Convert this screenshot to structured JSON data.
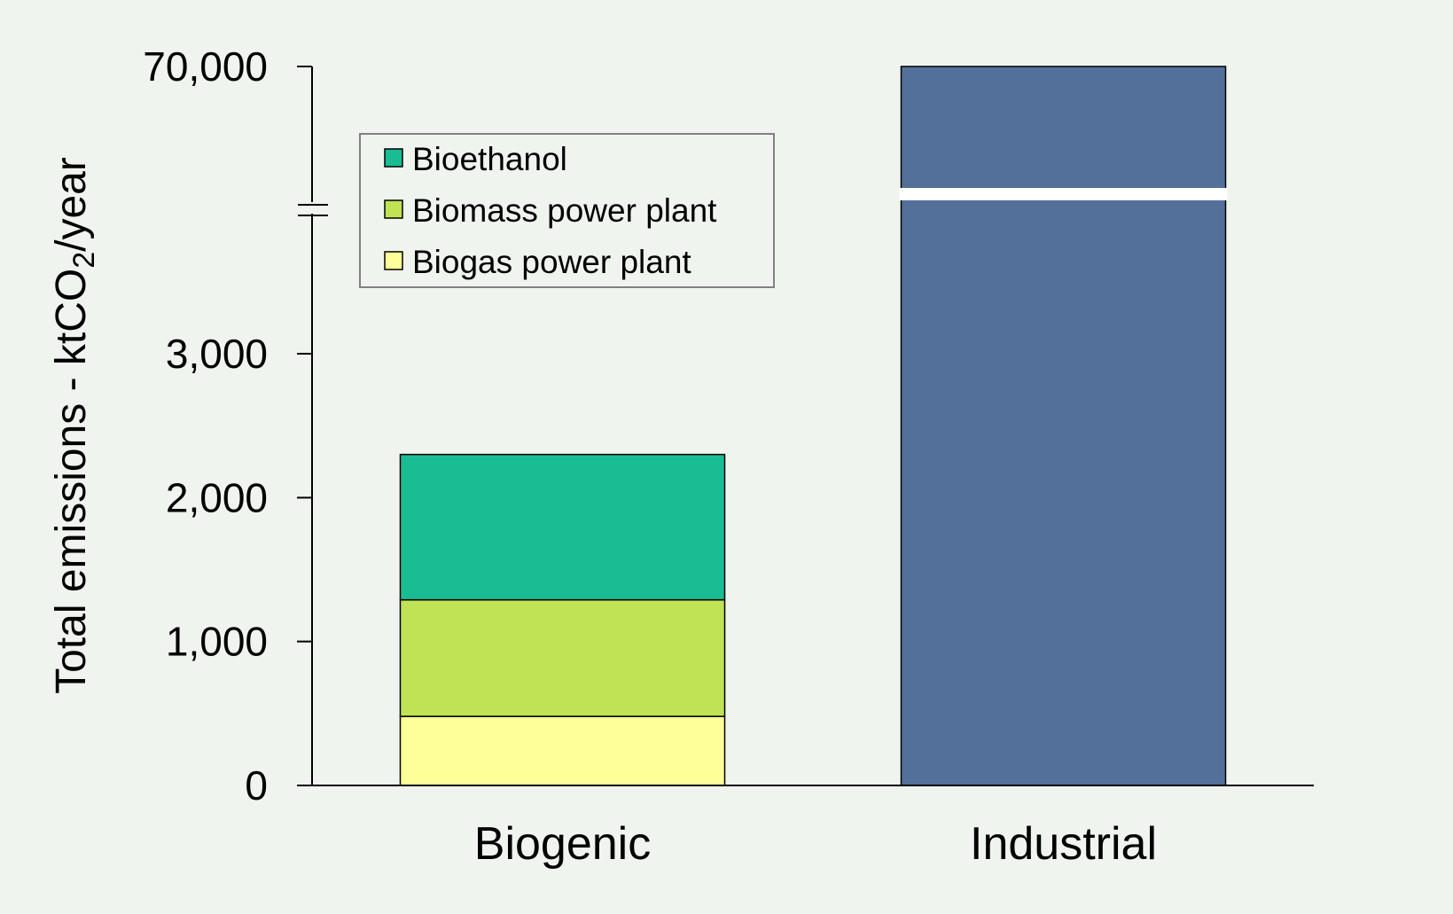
{
  "chart_data": {
    "type": "bar",
    "stacked": true,
    "broken_axis": true,
    "categories": [
      "Biogenic",
      "Industrial"
    ],
    "series": [
      {
        "name": "Biogas power plant",
        "color": "#ffff99",
        "values": [
          480,
          0
        ]
      },
      {
        "name": "Biomass power plant",
        "color": "#c0e255",
        "values": [
          810,
          0
        ]
      },
      {
        "name": "Bioethanol",
        "color": "#1abc94",
        "values": [
          1010,
          0
        ]
      },
      {
        "name": "",
        "color": "#53709b",
        "values": [
          0,
          70000
        ]
      }
    ],
    "legend_entries": [
      "Bioethanol",
      "Biomass power plant",
      "Biogas power plant"
    ],
    "ylabel_main": "Total emissions - ktCO",
    "ylabel_sub": "2",
    "ylabel_tail": "/year",
    "ylim": [
      0,
      70000
    ],
    "yticks": [
      {
        "value": 0,
        "label": "0"
      },
      {
        "value": 1000,
        "label": "1,000"
      },
      {
        "value": 2000,
        "label": "2,000"
      },
      {
        "value": 3000,
        "label": "3,000"
      },
      {
        "value": 70000,
        "label": "70,000"
      }
    ],
    "axis_break_between": [
      3000,
      70000
    ],
    "legend_position": "top-left",
    "grid": false
  }
}
